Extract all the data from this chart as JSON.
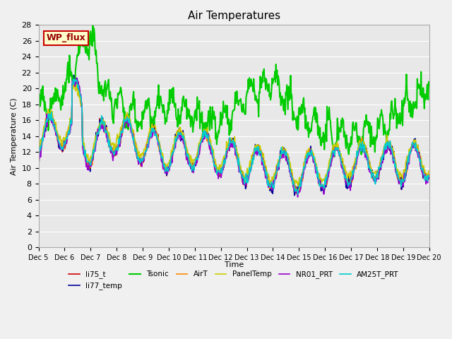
{
  "title": "Air Temperatures",
  "ylabel": "Air Temperature (C)",
  "xlabel": "Time",
  "ylim": [
    0,
    28
  ],
  "yticks": [
    0,
    2,
    4,
    6,
    8,
    10,
    12,
    14,
    16,
    18,
    20,
    22,
    24,
    26,
    28
  ],
  "background_color": "#e8e8e8",
  "series": [
    {
      "name": "li75_t",
      "color": "#cc0000",
      "lw": 1.2
    },
    {
      "name": "li77_temp",
      "color": "#000099",
      "lw": 1.2
    },
    {
      "name": "Tsonic",
      "color": "#00cc00",
      "lw": 1.5
    },
    {
      "name": "AirT",
      "color": "#ff8800",
      "lw": 1.2
    },
    {
      "name": "PanelTemp",
      "color": "#cccc00",
      "lw": 1.2
    },
    {
      "name": "NR01_PRT",
      "color": "#9900cc",
      "lw": 1.2
    },
    {
      "name": "AM25T_PRT",
      "color": "#00cccc",
      "lw": 1.2
    }
  ],
  "xtick_labels": [
    "Dec 5",
    "Dec 6",
    "Dec 7",
    "Dec 8",
    "Dec 9",
    "Dec 10",
    "Dec 11",
    "Dec 12",
    "Dec 13",
    "Dec 14",
    "Dec 15",
    "Dec 16",
    "Dec 17",
    "Dec 18",
    "Dec 19",
    "Dec 20"
  ],
  "annotation_text": "WP_flux",
  "annotation_bg": "#ffffcc",
  "annotation_border": "#cc0000"
}
